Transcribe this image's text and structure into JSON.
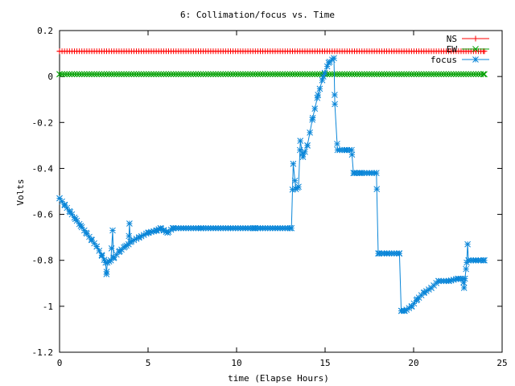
{
  "chart_data": {
    "type": "line",
    "title": "6: Collimation/focus vs. Time",
    "xlabel": "time (Elapse Hours)",
    "ylabel": "Volts",
    "xlim": [
      0,
      25
    ],
    "ylim": [
      -1.2,
      0.2
    ],
    "x_ticks": [
      "0",
      "5",
      "10",
      "15",
      "20",
      "25"
    ],
    "y_ticks": [
      "0.2",
      "0",
      "-0.2",
      "-0.4",
      "-0.6",
      "-0.8",
      "-1",
      "-1.2"
    ],
    "grid": false,
    "legend_position": "top-right",
    "series": [
      {
        "name": "NS",
        "color": "#ff0000",
        "marker": "plus",
        "points": [
          [
            0.0,
            0.11
          ],
          [
            24.0,
            0.11
          ]
        ],
        "marker_step": 0.14
      },
      {
        "name": "EW",
        "color": "#00a000",
        "marker": "x",
        "points": [
          [
            0.0,
            0.01
          ],
          [
            24.0,
            0.01
          ]
        ],
        "marker_step": 0.14
      },
      {
        "name": "focus",
        "color": "#0a86d8",
        "marker": "star",
        "marker_step": 0.14,
        "points": [
          [
            0.0,
            -0.53
          ],
          [
            0.3,
            -0.56
          ],
          [
            0.6,
            -0.59
          ],
          [
            0.9,
            -0.62
          ],
          [
            1.2,
            -0.65
          ],
          [
            1.5,
            -0.68
          ],
          [
            1.8,
            -0.71
          ],
          [
            2.1,
            -0.74
          ],
          [
            2.4,
            -0.78
          ],
          [
            2.6,
            -0.81
          ],
          [
            2.65,
            -0.86
          ],
          [
            2.7,
            -0.81
          ],
          [
            2.9,
            -0.8
          ],
          [
            3.0,
            -0.67
          ],
          [
            3.05,
            -0.79
          ],
          [
            3.4,
            -0.76
          ],
          [
            3.7,
            -0.74
          ],
          [
            3.9,
            -0.73
          ],
          [
            3.95,
            -0.64
          ],
          [
            4.0,
            -0.72
          ],
          [
            4.5,
            -0.7
          ],
          [
            5.0,
            -0.68
          ],
          [
            5.5,
            -0.67
          ],
          [
            5.7,
            -0.66
          ],
          [
            5.9,
            -0.67
          ],
          [
            6.1,
            -0.68
          ],
          [
            6.4,
            -0.66
          ],
          [
            8.0,
            -0.66
          ],
          [
            11.0,
            -0.66
          ],
          [
            13.1,
            -0.66
          ],
          [
            13.2,
            -0.38
          ],
          [
            13.35,
            -0.49
          ],
          [
            13.5,
            -0.48
          ],
          [
            13.6,
            -0.28
          ],
          [
            13.75,
            -0.35
          ],
          [
            14.0,
            -0.3
          ],
          [
            14.3,
            -0.18
          ],
          [
            14.6,
            -0.08
          ],
          [
            14.9,
            0.0
          ],
          [
            15.2,
            0.06
          ],
          [
            15.5,
            0.08
          ],
          [
            15.55,
            -0.12
          ],
          [
            15.7,
            -0.32
          ],
          [
            16.2,
            -0.32
          ],
          [
            16.5,
            -0.32
          ],
          [
            16.6,
            -0.42
          ],
          [
            17.0,
            -0.42
          ],
          [
            17.9,
            -0.42
          ],
          [
            18.0,
            -0.77
          ],
          [
            18.5,
            -0.77
          ],
          [
            19.2,
            -0.77
          ],
          [
            19.3,
            -1.02
          ],
          [
            19.5,
            -1.02
          ],
          [
            19.9,
            -1.0
          ],
          [
            20.2,
            -0.97
          ],
          [
            20.6,
            -0.94
          ],
          [
            21.0,
            -0.92
          ],
          [
            21.4,
            -0.89
          ],
          [
            22.0,
            -0.89
          ],
          [
            22.5,
            -0.88
          ],
          [
            22.8,
            -0.88
          ],
          [
            22.85,
            -0.92
          ],
          [
            22.9,
            -0.88
          ],
          [
            23.0,
            -0.81
          ],
          [
            23.05,
            -0.73
          ],
          [
            23.1,
            -0.8
          ],
          [
            23.5,
            -0.8
          ],
          [
            24.0,
            -0.8
          ]
        ]
      }
    ]
  }
}
